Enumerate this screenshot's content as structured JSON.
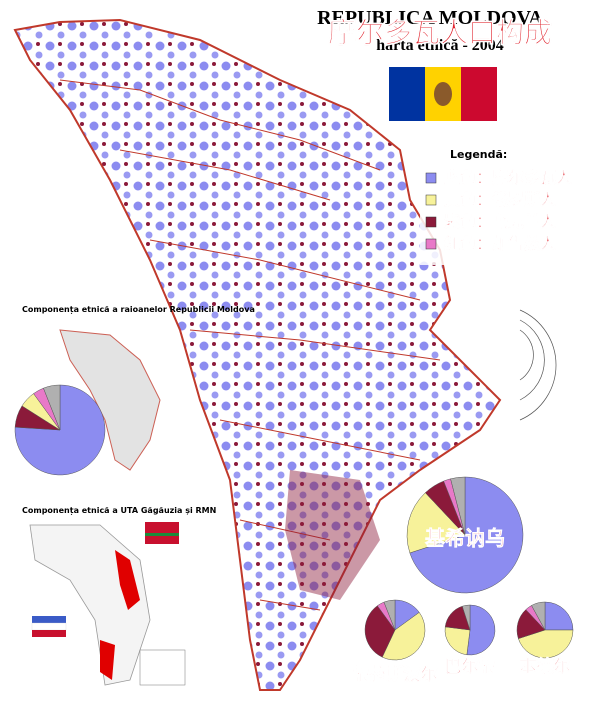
{
  "header": {
    "title": "REPUBLICA MOLDOVA",
    "subtitle": "harta etnică - 2004",
    "overlay_title": "摩尔多瓦人口构成"
  },
  "legend": {
    "title": "Legendă:",
    "items": [
      {
        "label": "蓝色：摩尔多瓦人",
        "color": "#8c8cf0"
      },
      {
        "label": "黄色：俄罗斯人",
        "color": "#f7f29a"
      },
      {
        "label": "紫色：乌克兰人",
        "color": "#8b1a3a"
      },
      {
        "label": "红色：加告兹人",
        "color": "#e879c8"
      }
    ]
  },
  "insets": [
    {
      "title": "Componența etnică a raioanelor Republicii Moldova"
    },
    {
      "title": "Componența etnică a UTA Găgăuzia și RMN"
    }
  ],
  "chart_data": [
    {
      "type": "pie",
      "values": [
        76,
        8,
        6,
        4,
        6
      ],
      "colors": [
        "#8c8cf0",
        "#8b1a3a",
        "#f7f29a",
        "#e879c8",
        "#b0b0b0"
      ]
    },
    {
      "type": "pie",
      "label": "基希讷乌",
      "values": [
        70,
        18,
        6,
        2,
        4
      ],
      "colors": [
        "#8c8cf0",
        "#f7f29a",
        "#8b1a3a",
        "#e879c8",
        "#b0b0b0"
      ]
    },
    {
      "type": "pie",
      "label": "蒂拉斯波尔",
      "values": [
        15,
        42,
        33,
        4,
        6
      ],
      "colors": [
        "#8c8cf0",
        "#f7f29a",
        "#8b1a3a",
        "#e879c8",
        "#b0b0b0"
      ]
    },
    {
      "type": "pie",
      "label": "巴尔蒂",
      "values": [
        52,
        25,
        18,
        5
      ],
      "colors": [
        "#8c8cf0",
        "#f7f29a",
        "#8b1a3a",
        "#b0b0b0"
      ]
    },
    {
      "type": "pie",
      "label": "本德尔",
      "values": [
        25,
        45,
        18,
        4,
        8
      ],
      "colors": [
        "#8c8cf0",
        "#f7f29a",
        "#8b1a3a",
        "#e879c8",
        "#b0b0b0"
      ]
    }
  ]
}
